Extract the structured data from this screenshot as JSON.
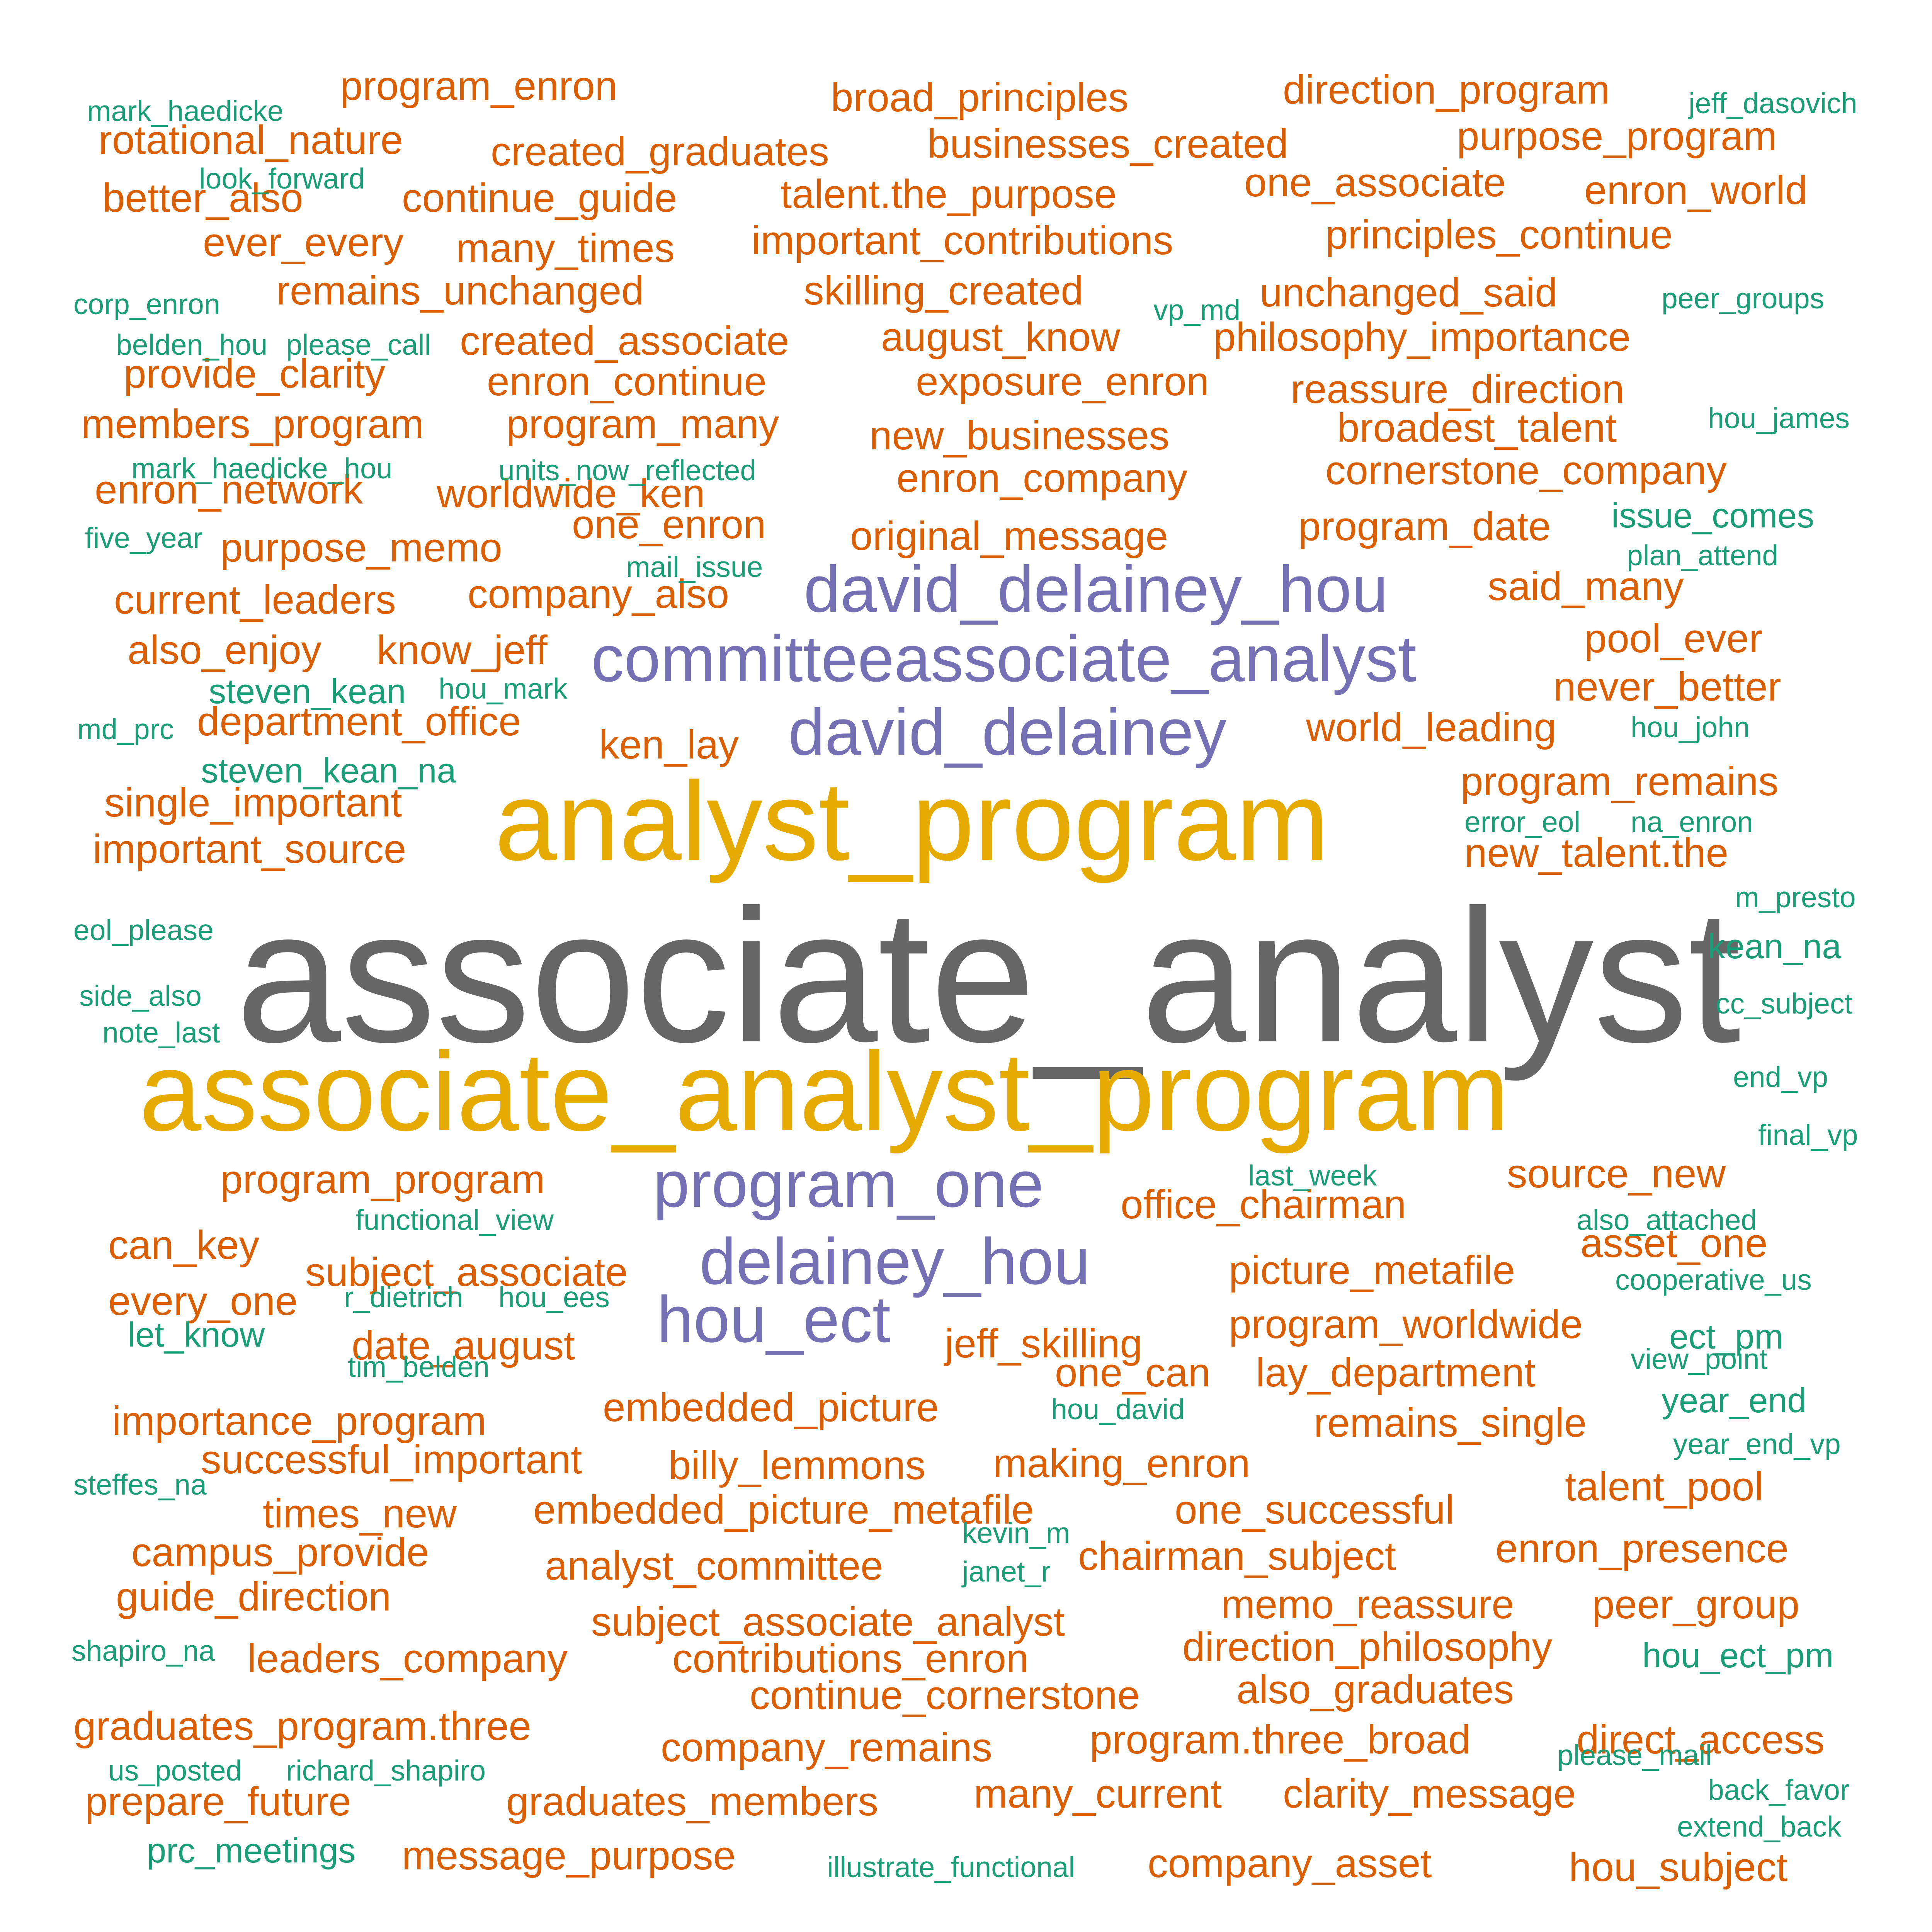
{
  "colors": {
    "gray": "#666666",
    "gold": "#E6AB02",
    "purple": "#7570B3",
    "orange": "#D95F02",
    "green": "#1B9E77"
  },
  "words": [
    {
      "text": "associate_analyst",
      "color": "gray"
    },
    {
      "text": "analyst_program",
      "color": "gold"
    },
    {
      "text": "associate_analyst_program",
      "color": "gold"
    },
    {
      "text": "david_delainey_hou",
      "color": "purple"
    },
    {
      "text": "committeeassociate_analyst",
      "color": "purple"
    },
    {
      "text": "david_delainey",
      "color": "purple"
    },
    {
      "text": "program_one",
      "color": "purple"
    },
    {
      "text": "delainey_hou",
      "color": "purple"
    },
    {
      "text": "hou_ect",
      "color": "purple"
    },
    {
      "text": "program_enron",
      "color": "orange"
    },
    {
      "text": "broad_principles",
      "color": "orange"
    },
    {
      "text": "direction_program",
      "color": "orange"
    },
    {
      "text": "rotational_nature",
      "color": "orange"
    },
    {
      "text": "created_graduates",
      "color": "orange"
    },
    {
      "text": "businesses_created",
      "color": "orange"
    },
    {
      "text": "purpose_program",
      "color": "orange"
    },
    {
      "text": "better_also",
      "color": "orange"
    },
    {
      "text": "continue_guide",
      "color": "orange"
    },
    {
      "text": "talent.the_purpose",
      "color": "orange"
    },
    {
      "text": "one_associate",
      "color": "orange"
    },
    {
      "text": "enron_world",
      "color": "orange"
    },
    {
      "text": "ever_every",
      "color": "orange"
    },
    {
      "text": "many_times",
      "color": "orange"
    },
    {
      "text": "important_contributions",
      "color": "orange"
    },
    {
      "text": "principles_continue",
      "color": "orange"
    },
    {
      "text": "remains_unchanged",
      "color": "orange"
    },
    {
      "text": "skilling_created",
      "color": "orange"
    },
    {
      "text": "unchanged_said",
      "color": "orange"
    },
    {
      "text": "created_associate",
      "color": "orange"
    },
    {
      "text": "august_know",
      "color": "orange"
    },
    {
      "text": "philosophy_importance",
      "color": "orange"
    },
    {
      "text": "provide_clarity",
      "color": "orange"
    },
    {
      "text": "enron_continue",
      "color": "orange"
    },
    {
      "text": "exposure_enron",
      "color": "orange"
    },
    {
      "text": "reassure_direction",
      "color": "orange"
    },
    {
      "text": "members_program",
      "color": "orange"
    },
    {
      "text": "program_many",
      "color": "orange"
    },
    {
      "text": "new_businesses",
      "color": "orange"
    },
    {
      "text": "broadest_talent",
      "color": "orange"
    },
    {
      "text": "enron_company",
      "color": "orange"
    },
    {
      "text": "cornerstone_company",
      "color": "orange"
    },
    {
      "text": "enron_network",
      "color": "orange"
    },
    {
      "text": "worldwide_ken",
      "color": "orange"
    },
    {
      "text": "one_enron",
      "color": "orange"
    },
    {
      "text": "original_message",
      "color": "orange"
    },
    {
      "text": "program_date",
      "color": "orange"
    },
    {
      "text": "purpose_memo",
      "color": "orange"
    },
    {
      "text": "current_leaders",
      "color": "orange"
    },
    {
      "text": "company_also",
      "color": "orange"
    },
    {
      "text": "said_many",
      "color": "orange"
    },
    {
      "text": "also_enjoy",
      "color": "orange"
    },
    {
      "text": "know_jeff",
      "color": "orange"
    },
    {
      "text": "pool_ever",
      "color": "orange"
    },
    {
      "text": "never_better",
      "color": "orange"
    },
    {
      "text": "department_office",
      "color": "orange"
    },
    {
      "text": "ken_lay",
      "color": "orange"
    },
    {
      "text": "world_leading",
      "color": "orange"
    },
    {
      "text": "single_important",
      "color": "orange"
    },
    {
      "text": "program_remains",
      "color": "orange"
    },
    {
      "text": "important_source",
      "color": "orange"
    },
    {
      "text": "new_talent.the",
      "color": "orange"
    },
    {
      "text": "program_program",
      "color": "orange"
    },
    {
      "text": "source_new",
      "color": "orange"
    },
    {
      "text": "office_chairman",
      "color": "orange"
    },
    {
      "text": "can_key",
      "color": "orange"
    },
    {
      "text": "subject_associate",
      "color": "orange"
    },
    {
      "text": "asset_one",
      "color": "orange"
    },
    {
      "text": "picture_metafile",
      "color": "orange"
    },
    {
      "text": "every_one",
      "color": "orange"
    },
    {
      "text": "program_worldwide",
      "color": "orange"
    },
    {
      "text": "date_august",
      "color": "orange"
    },
    {
      "text": "jeff_skilling",
      "color": "orange"
    },
    {
      "text": "one_can",
      "color": "orange"
    },
    {
      "text": "lay_department",
      "color": "orange"
    },
    {
      "text": "importance_program",
      "color": "orange"
    },
    {
      "text": "embedded_picture",
      "color": "orange"
    },
    {
      "text": "remains_single",
      "color": "orange"
    },
    {
      "text": "successful_important",
      "color": "orange"
    },
    {
      "text": "billy_lemmons",
      "color": "orange"
    },
    {
      "text": "making_enron",
      "color": "orange"
    },
    {
      "text": "times_new",
      "color": "orange"
    },
    {
      "text": "embedded_picture_metafile",
      "color": "orange"
    },
    {
      "text": "one_successful",
      "color": "orange"
    },
    {
      "text": "talent_pool",
      "color": "orange"
    },
    {
      "text": "enron_presence",
      "color": "orange"
    },
    {
      "text": "campus_provide",
      "color": "orange"
    },
    {
      "text": "analyst_committee",
      "color": "orange"
    },
    {
      "text": "chairman_subject",
      "color": "orange"
    },
    {
      "text": "guide_direction",
      "color": "orange"
    },
    {
      "text": "subject_associate_analyst",
      "color": "orange"
    },
    {
      "text": "memo_reassure",
      "color": "orange"
    },
    {
      "text": "peer_group",
      "color": "orange"
    },
    {
      "text": "leaders_company",
      "color": "orange"
    },
    {
      "text": "contributions_enron",
      "color": "orange"
    },
    {
      "text": "direction_philosophy",
      "color": "orange"
    },
    {
      "text": "continue_cornerstone",
      "color": "orange"
    },
    {
      "text": "also_graduates",
      "color": "orange"
    },
    {
      "text": "graduates_program.three",
      "color": "orange"
    },
    {
      "text": "direct_access",
      "color": "orange"
    },
    {
      "text": "company_remains",
      "color": "orange"
    },
    {
      "text": "program.three_broad",
      "color": "orange"
    },
    {
      "text": "prepare_future",
      "color": "orange"
    },
    {
      "text": "graduates_members",
      "color": "orange"
    },
    {
      "text": "many_current",
      "color": "orange"
    },
    {
      "text": "clarity_message",
      "color": "orange"
    },
    {
      "text": "message_purpose",
      "color": "orange"
    },
    {
      "text": "company_asset",
      "color": "orange"
    },
    {
      "text": "hou_subject",
      "color": "orange"
    },
    {
      "text": "mark_haedicke",
      "color": "green"
    },
    {
      "text": "jeff_dasovich",
      "color": "green"
    },
    {
      "text": "look_forward",
      "color": "green"
    },
    {
      "text": "corp_enron",
      "color": "green"
    },
    {
      "text": "vp_md",
      "color": "green"
    },
    {
      "text": "peer_groups",
      "color": "green"
    },
    {
      "text": "belden_hou",
      "color": "green"
    },
    {
      "text": "please_call",
      "color": "green"
    },
    {
      "text": "hou_james",
      "color": "green"
    },
    {
      "text": "mark_haedicke_hou",
      "color": "green"
    },
    {
      "text": "units_now_reflected",
      "color": "green"
    },
    {
      "text": "issue_comes",
      "color": "green"
    },
    {
      "text": "five_year",
      "color": "green"
    },
    {
      "text": "mail_issue",
      "color": "green"
    },
    {
      "text": "plan_attend",
      "color": "green"
    },
    {
      "text": "steven_kean",
      "color": "green"
    },
    {
      "text": "hou_mark",
      "color": "green"
    },
    {
      "text": "md_prc",
      "color": "green"
    },
    {
      "text": "hou_john",
      "color": "green"
    },
    {
      "text": "steven_kean_na",
      "color": "green"
    },
    {
      "text": "error_eol",
      "color": "green"
    },
    {
      "text": "na_enron",
      "color": "green"
    },
    {
      "text": "m_presto",
      "color": "green"
    },
    {
      "text": "eol_please",
      "color": "green"
    },
    {
      "text": "kean_na",
      "color": "green"
    },
    {
      "text": "side_also",
      "color": "green"
    },
    {
      "text": "cc_subject",
      "color": "green"
    },
    {
      "text": "note_last",
      "color": "green"
    },
    {
      "text": "end_vp",
      "color": "green"
    },
    {
      "text": "final_vp",
      "color": "green"
    },
    {
      "text": "last_week",
      "color": "green"
    },
    {
      "text": "functional_view",
      "color": "green"
    },
    {
      "text": "also_attached",
      "color": "green"
    },
    {
      "text": "cooperative_us",
      "color": "green"
    },
    {
      "text": "r_dietrich",
      "color": "green"
    },
    {
      "text": "hou_ees",
      "color": "green"
    },
    {
      "text": "ect_pm",
      "color": "green"
    },
    {
      "text": "let_know",
      "color": "green"
    },
    {
      "text": "tim_belden",
      "color": "green"
    },
    {
      "text": "view_point",
      "color": "green"
    },
    {
      "text": "hou_david",
      "color": "green"
    },
    {
      "text": "year_end",
      "color": "green"
    },
    {
      "text": "year_end_vp",
      "color": "green"
    },
    {
      "text": "steffes_na",
      "color": "green"
    },
    {
      "text": "kevin_m",
      "color": "green"
    },
    {
      "text": "janet_r",
      "color": "green"
    },
    {
      "text": "shapiro_na",
      "color": "green"
    },
    {
      "text": "hou_ect_pm",
      "color": "green"
    },
    {
      "text": "us_posted",
      "color": "green"
    },
    {
      "text": "richard_shapiro",
      "color": "green"
    },
    {
      "text": "please_mail",
      "color": "green"
    },
    {
      "text": "back_favor",
      "color": "green"
    },
    {
      "text": "extend_back",
      "color": "green"
    },
    {
      "text": "prc_meetings",
      "color": "green"
    },
    {
      "text": "illustrate_functional",
      "color": "green"
    }
  ]
}
